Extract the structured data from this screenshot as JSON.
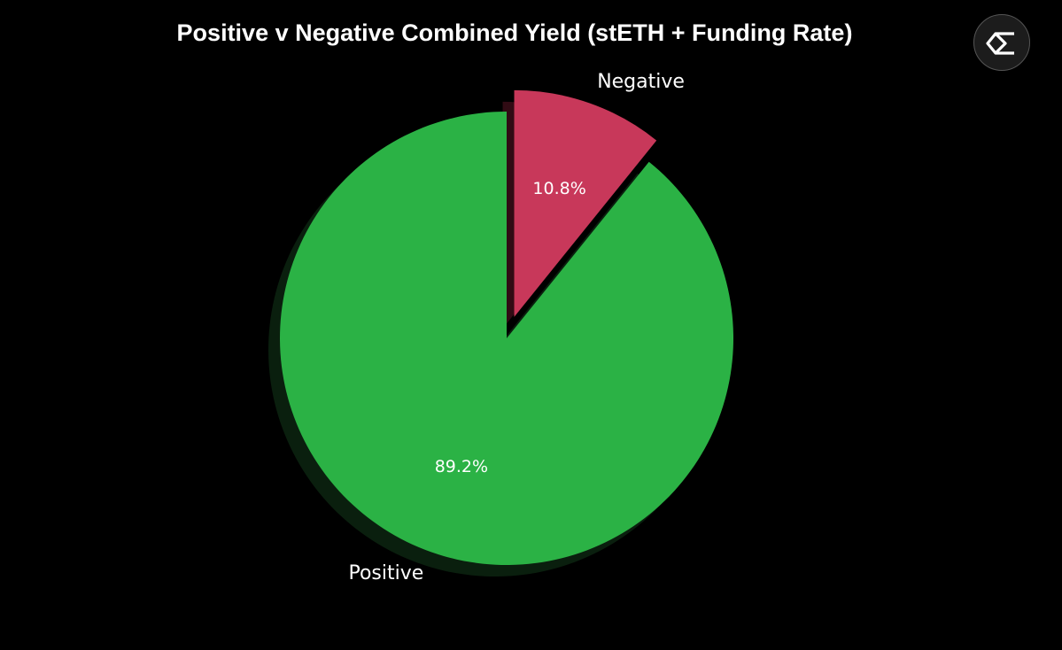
{
  "chart_data": {
    "type": "pie",
    "title": "Positive v Negative Combined Yield (stETH + Funding Rate)",
    "slices": [
      {
        "label": "Negative",
        "value": 10.8,
        "pct_label": "10.8%",
        "color": "#c8385a",
        "exploded": true
      },
      {
        "label": "Positive",
        "value": 89.2,
        "pct_label": "89.2%",
        "color": "#2bb245",
        "exploded": false
      }
    ],
    "start_angle": "top",
    "direction": "clockwise",
    "shadow": true,
    "legend": "none"
  },
  "logo": {
    "icon": "sigma-logo-icon"
  }
}
